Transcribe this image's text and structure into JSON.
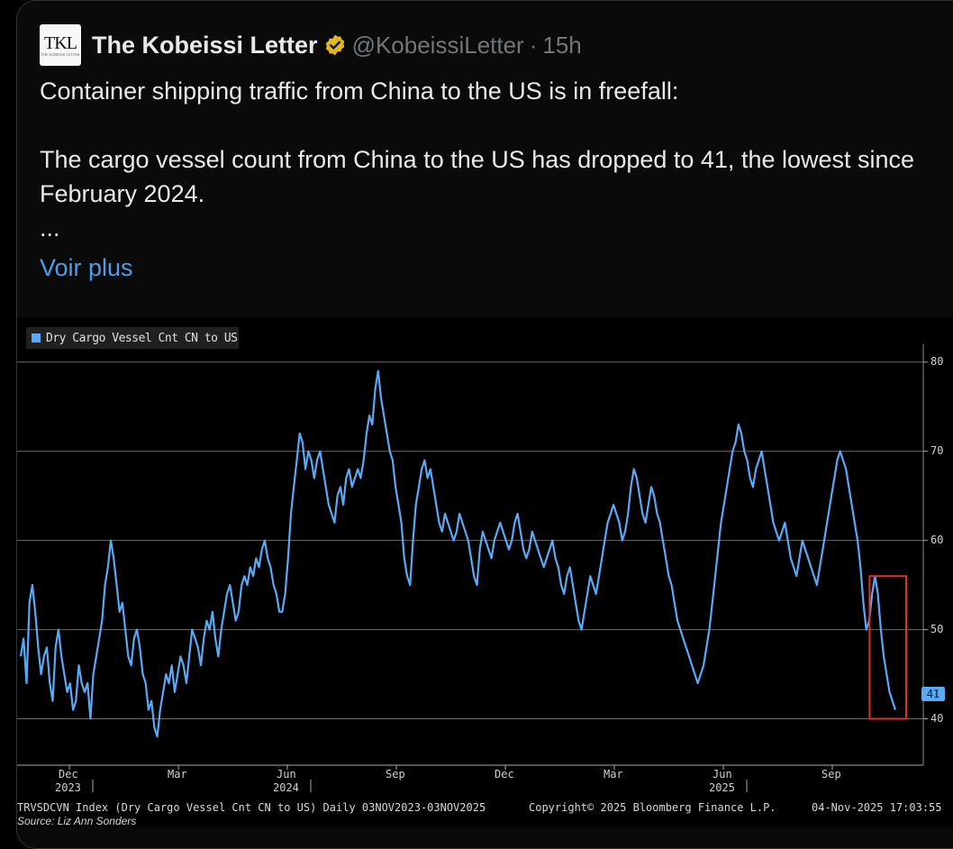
{
  "tweet": {
    "author_name": "The Kobeissi Letter",
    "handle": "@KobeissiLetter",
    "separator": "·",
    "time": "15h",
    "logo_text": "TKL",
    "logo_subtext": "THE KOBEISSI LETTER",
    "verified_icon": "verified-gold-badge-icon",
    "paragraphs": [
      "Container shipping traffic from China to the US is in freefall:",
      "The cargo vessel count from China to the US has dropped to 41, the lowest since February 2024.",
      "..."
    ],
    "show_more": "Voir plus"
  },
  "chart_data": {
    "type": "line",
    "title": "",
    "legend": "Dry Cargo Vessel Cnt CN to US",
    "series": [
      {
        "name": "Dry Cargo Vessel Cnt CN to US",
        "color": "#5aa9f5",
        "x_start": "2023-11-03",
        "x_end": "2025-11-03",
        "values": [
          47,
          49,
          44,
          53,
          55,
          52,
          48,
          45,
          47,
          48,
          44,
          42,
          48,
          50,
          47,
          45,
          43,
          44,
          41,
          42,
          46,
          44,
          43,
          44,
          40,
          45,
          47,
          49,
          51,
          55,
          57,
          60,
          58,
          55,
          52,
          53,
          50,
          47,
          46,
          49,
          50,
          48,
          45,
          44,
          41,
          42,
          39,
          38,
          41,
          43,
          45,
          44,
          46,
          43,
          45,
          47,
          46,
          44,
          47,
          50,
          49,
          48,
          46,
          49,
          51,
          50,
          52,
          49,
          47,
          50,
          52,
          54,
          55,
          53,
          51,
          52,
          55,
          56,
          55,
          57,
          56,
          58,
          57,
          59,
          60,
          58,
          57,
          55,
          54,
          52,
          52,
          54,
          58,
          63,
          66,
          69,
          72,
          71,
          68,
          70,
          69,
          67,
          69,
          70,
          68,
          66,
          64,
          63,
          62,
          65,
          66,
          64,
          67,
          68,
          66,
          67,
          68,
          67,
          69,
          72,
          74,
          73,
          77,
          79,
          76,
          74,
          72,
          70,
          69,
          66,
          64,
          62,
          58,
          56,
          55,
          60,
          64,
          66,
          68,
          69,
          67,
          68,
          66,
          64,
          62,
          61,
          63,
          62,
          61,
          60,
          61,
          63,
          62,
          61,
          60,
          58,
          56,
          55,
          59,
          61,
          60,
          59,
          58,
          60,
          61,
          62,
          61,
          60,
          59,
          60,
          62,
          63,
          61,
          59,
          58,
          59,
          61,
          60,
          59,
          58,
          57,
          58,
          59,
          60,
          58,
          57,
          55,
          54,
          56,
          57,
          55,
          53,
          51,
          50,
          52,
          54,
          56,
          55,
          54,
          56,
          58,
          60,
          62,
          63,
          64,
          63,
          62,
          60,
          61,
          63,
          66,
          68,
          67,
          65,
          63,
          62,
          64,
          66,
          65,
          63,
          62,
          60,
          58,
          56,
          55,
          53,
          51,
          50,
          49,
          48,
          47,
          46,
          45,
          44,
          45,
          46,
          48,
          50,
          53,
          56,
          59,
          62,
          64,
          66,
          68,
          70,
          71,
          73,
          72,
          70,
          69,
          67,
          66,
          68,
          69,
          70,
          68,
          66,
          64,
          62,
          61,
          60,
          61,
          62,
          60,
          58,
          57,
          56,
          58,
          60,
          59,
          58,
          57,
          56,
          55,
          57,
          59,
          61,
          63,
          65,
          67,
          69,
          70,
          69,
          68,
          66,
          64,
          62,
          60,
          57,
          53,
          50,
          51,
          54,
          56,
          54,
          50,
          47,
          45,
          43,
          42,
          41
        ],
        "last_value_label": "41"
      }
    ],
    "y_ticks": [
      "80",
      "70",
      "60",
      "50",
      "40"
    ],
    "ylim": [
      35,
      82
    ],
    "x_labels": [
      {
        "month": "Dec",
        "year": "2023"
      },
      {
        "month": "Mar",
        "year": ""
      },
      {
        "month": "Jun",
        "year": "2024"
      },
      {
        "month": "Sep",
        "year": ""
      },
      {
        "month": "Dec",
        "year": ""
      },
      {
        "month": "Mar",
        "year": ""
      },
      {
        "month": "Jun",
        "year": "2025"
      },
      {
        "month": "Sep",
        "year": ""
      }
    ],
    "highlight_box": {
      "color": "#e0322b",
      "description_values": [
        55,
        41
      ]
    },
    "grid": true,
    "footer_index": "TRVSDCVN Index (Dry Cargo Vessel Cnt CN to US) Daily 03NOV2023-03NOV2025",
    "footer_copyright": "Copyright© 2025 Bloomberg Finance L.P.",
    "footer_timestamp": "04-Nov-2025 17:03:55",
    "source": "Source: Liz Ann Sonders"
  }
}
